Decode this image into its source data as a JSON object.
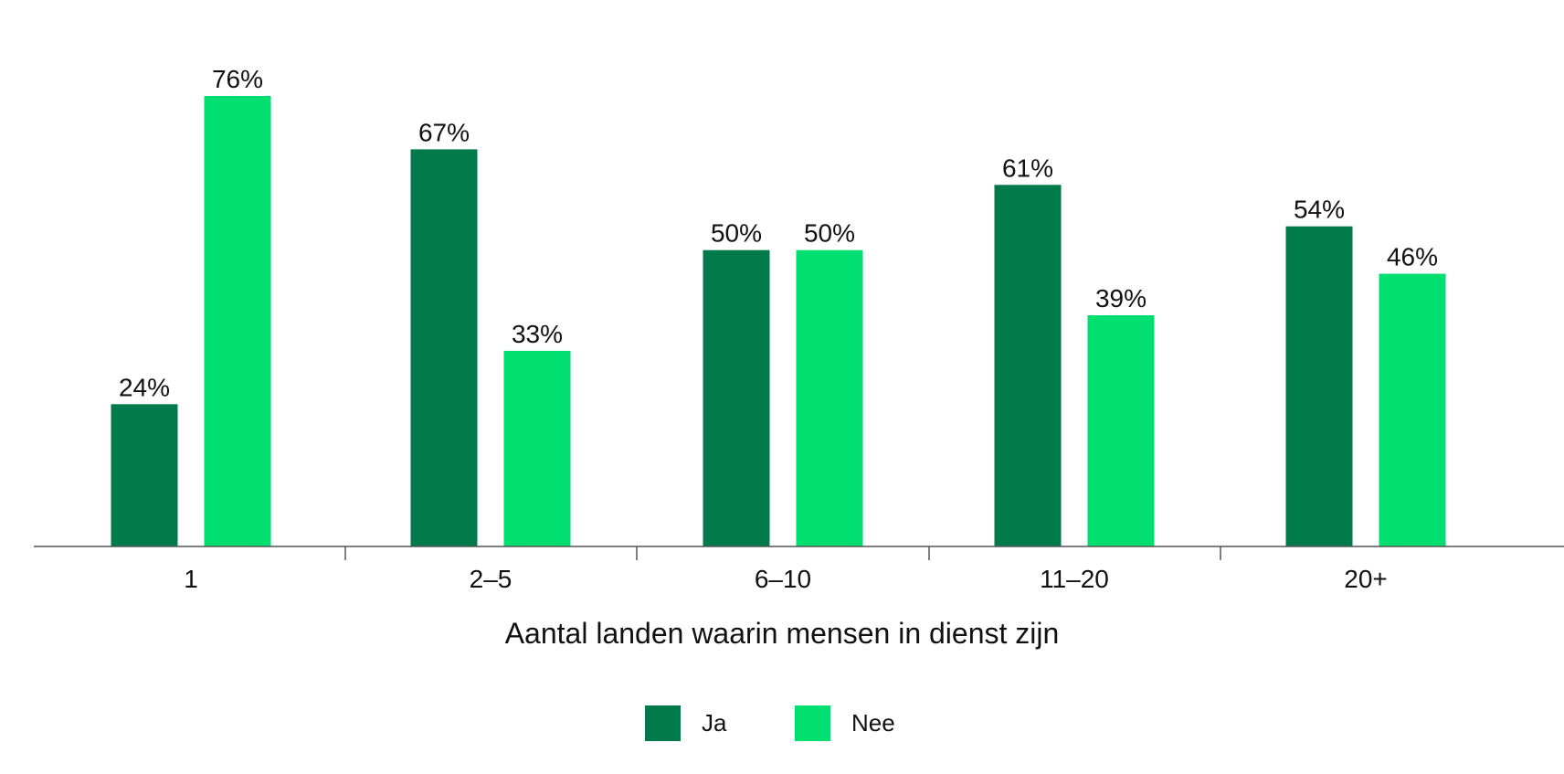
{
  "chart_data": {
    "type": "bar",
    "categories": [
      "1",
      "2–5",
      "6–10",
      "11–20",
      "20+"
    ],
    "series": [
      {
        "name": "Ja",
        "values": [
          24,
          67,
          50,
          61,
          54
        ],
        "color": "#007A4A"
      },
      {
        "name": "Nee",
        "values": [
          76,
          33,
          50,
          39,
          46
        ],
        "color": "#00DF6F"
      }
    ],
    "value_suffix": "%",
    "xlabel": "Aantal landen waarin mensen in dienst zijn",
    "ylabel": "",
    "ylim": [
      0,
      76
    ],
    "grid": false,
    "legend_position": "bottom-center",
    "axis_color": "#555555"
  }
}
